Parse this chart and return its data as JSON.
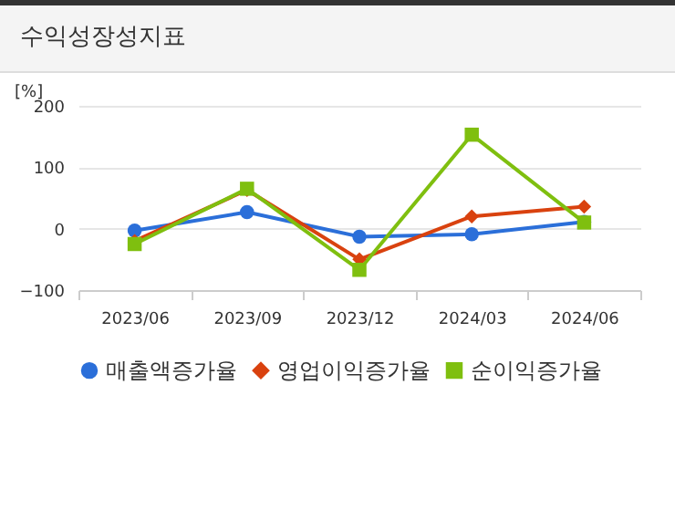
{
  "chart_data": {
    "type": "line",
    "title": "수익성장성지표",
    "ylabel": "[%]",
    "categories": [
      "2023/06",
      "2023/09",
      "2023/12",
      "2024/03",
      "2024/06"
    ],
    "series": [
      {
        "name": "매출액증가율",
        "color": "#2b6fd9",
        "marker": "circle",
        "values": [
          -3,
          27,
          -13,
          -9,
          11
        ]
      },
      {
        "name": "영업이익증가율",
        "color": "#d9420f",
        "marker": "diamond",
        "values": [
          -20,
          63,
          -50,
          20,
          36
        ]
      },
      {
        "name": "순이익증가율",
        "color": "#7fbf0f",
        "marker": "square",
        "values": [
          -25,
          65,
          -67,
          153,
          10
        ]
      }
    ],
    "ylim": [
      -100,
      200
    ],
    "yticks": [
      -100,
      0,
      100,
      200
    ],
    "grid": "y",
    "legend": "bottom"
  }
}
